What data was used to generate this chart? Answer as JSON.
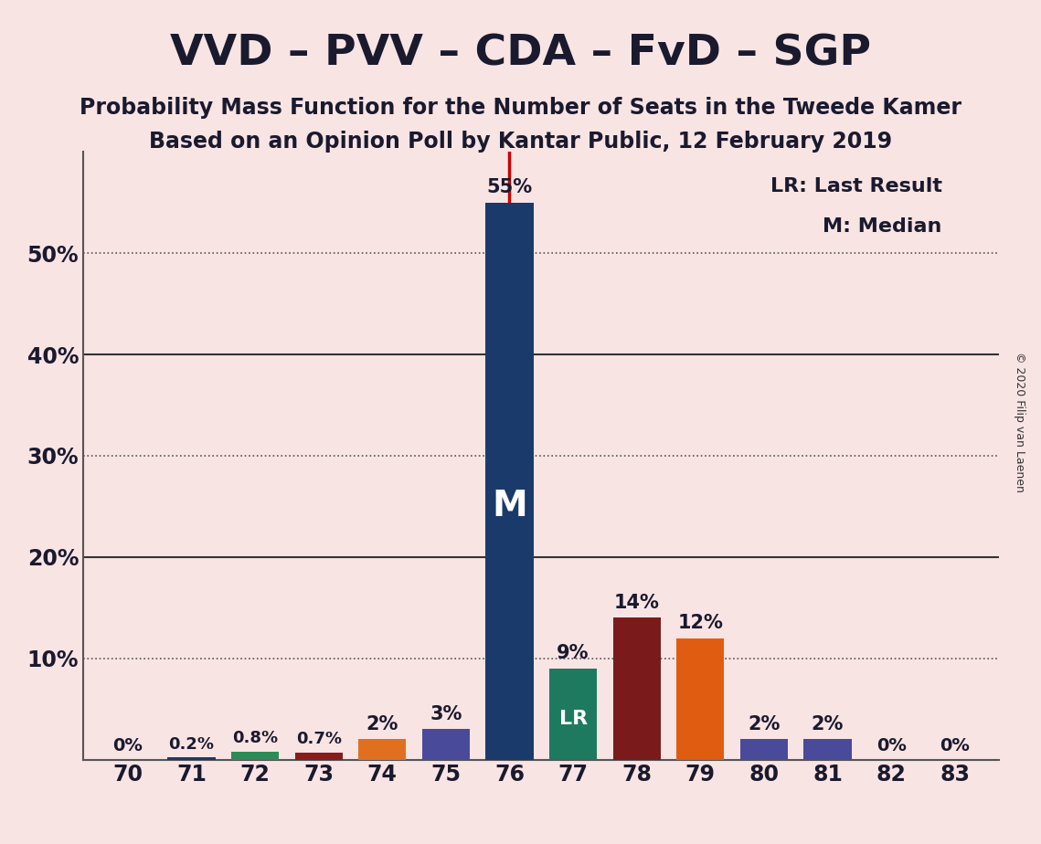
{
  "title": "VVD – PVV – CDA – FvD – SGP",
  "subtitle1": "Probability Mass Function for the Number of Seats in the Tweede Kamer",
  "subtitle2": "Based on an Opinion Poll by Kantar Public, 12 February 2019",
  "copyright": "© 2020 Filip van Laenen",
  "seats": [
    70,
    71,
    72,
    73,
    74,
    75,
    76,
    77,
    78,
    79,
    80,
    81,
    82,
    83
  ],
  "probabilities": [
    0.0,
    0.2,
    0.8,
    0.7,
    2.0,
    3.0,
    55.0,
    9.0,
    14.0,
    12.0,
    2.0,
    2.0,
    0.0,
    0.0
  ],
  "bar_colors": [
    "#1a3a6b",
    "#1a3a6b",
    "#2e8b57",
    "#8b1a1a",
    "#e07020",
    "#4a4a9a",
    "#1a3a6b",
    "#1e7a5e",
    "#7a1a1a",
    "#e05c10",
    "#4a4a9a",
    "#4a4a9a",
    "#1a3a6b",
    "#1a3a6b"
  ],
  "median_seat": 76,
  "last_result_seat": 77,
  "background_color": "#f9e4e4",
  "ylim": [
    0,
    60
  ],
  "yticks": [
    0,
    10,
    20,
    30,
    40,
    50,
    60
  ],
  "ytick_labels": [
    "",
    "10%",
    "20%",
    "30%",
    "40%",
    "50%",
    ""
  ],
  "legend_lr": "LR: Last Result",
  "legend_m": "M: Median",
  "dotted_lines": [
    10,
    30,
    50
  ],
  "solid_lines": [
    20,
    40
  ]
}
